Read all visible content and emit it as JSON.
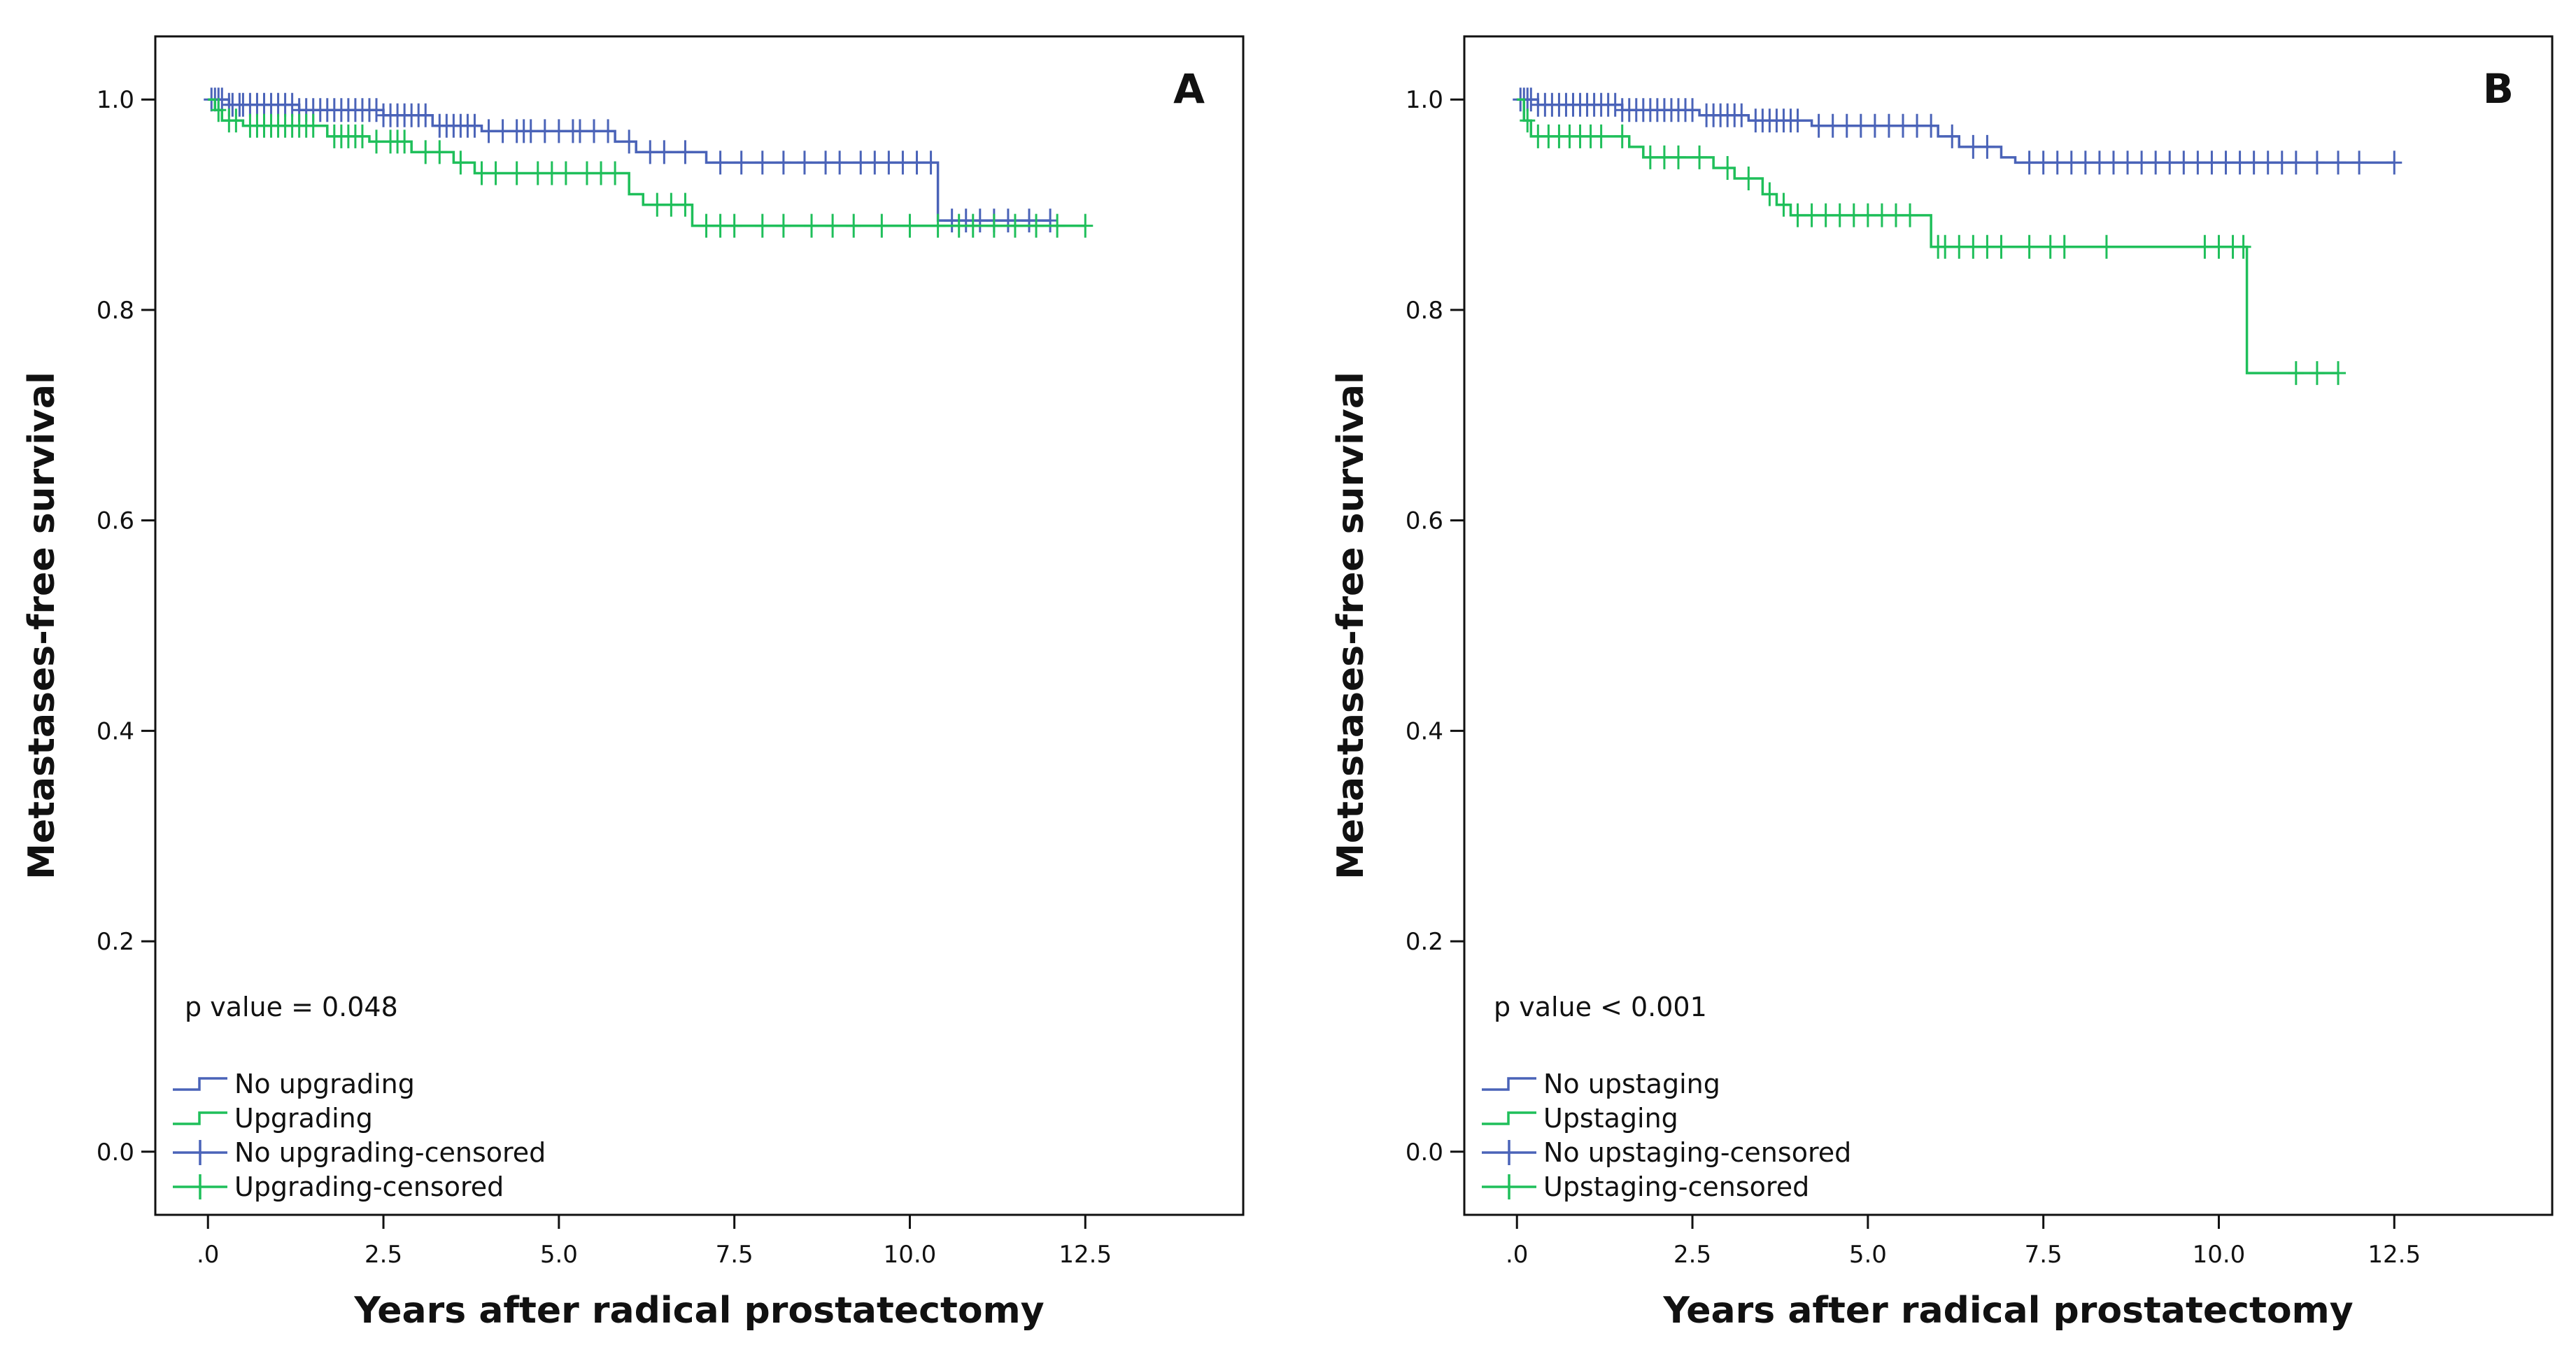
{
  "chart_data": [
    {
      "type": "line",
      "panel_label": "A",
      "xlabel": "Years after radical prostatectomy",
      "ylabel": "Metastases-free survival",
      "xlim": [
        -0.75,
        14.75
      ],
      "ylim": [
        -0.06,
        1.06
      ],
      "x_ticks": [
        0,
        2.5,
        5,
        7.5,
        10,
        12.5
      ],
      "x_tick_labels": [
        ".0",
        "2.5",
        "5.0",
        "7.5",
        "10.0",
        "12.5"
      ],
      "y_ticks": [
        0,
        0.2,
        0.4,
        0.6,
        0.8,
        1.0
      ],
      "y_tick_labels": [
        "0.0",
        "0.2",
        "0.4",
        "0.6",
        "0.8",
        "1.0"
      ],
      "annotation": "p value = 0.048",
      "legend_location": "bottom-left",
      "legend": [
        "No upgrading",
        "Upgrading",
        "No upgrading-censored",
        "Upgrading-censored"
      ],
      "series": [
        {
          "name": "No upgrading",
          "color": "#4a63b8",
          "steps": [
            [
              0,
              1.0
            ],
            [
              0.3,
              0.995
            ],
            [
              1.3,
              0.99
            ],
            [
              2.5,
              0.985
            ],
            [
              3.2,
              0.975
            ],
            [
              3.9,
              0.97
            ],
            [
              5.8,
              0.96
            ],
            [
              6.1,
              0.95
            ],
            [
              7.1,
              0.94
            ],
            [
              10.4,
              0.885
            ],
            [
              12.0,
              0.885
            ]
          ],
          "censored": [
            0.05,
            0.1,
            0.15,
            0.2,
            0.3,
            0.35,
            0.45,
            0.5,
            0.6,
            0.7,
            0.8,
            0.9,
            1.0,
            1.1,
            1.2,
            1.3,
            1.4,
            1.5,
            1.6,
            1.7,
            1.8,
            1.9,
            2.0,
            2.1,
            2.2,
            2.3,
            2.4,
            2.5,
            2.6,
            2.7,
            2.8,
            2.9,
            3.0,
            3.1,
            3.3,
            3.4,
            3.5,
            3.6,
            3.7,
            3.8,
            4.0,
            4.2,
            4.4,
            4.5,
            4.6,
            4.8,
            5.0,
            5.2,
            5.3,
            5.5,
            5.7,
            6.0,
            6.3,
            6.5,
            6.8,
            7.3,
            7.6,
            7.9,
            8.2,
            8.5,
            8.8,
            9.0,
            9.3,
            9.5,
            9.7,
            9.9,
            10.1,
            10.3,
            10.6,
            10.8,
            11.0,
            11.2,
            11.4,
            11.7,
            12.0
          ]
        },
        {
          "name": "Upgrading",
          "color": "#1fbf5a",
          "steps": [
            [
              0,
              1.0
            ],
            [
              0.1,
              0.99
            ],
            [
              0.2,
              0.98
            ],
            [
              0.5,
              0.975
            ],
            [
              1.7,
              0.965
            ],
            [
              2.3,
              0.96
            ],
            [
              2.9,
              0.95
            ],
            [
              3.5,
              0.94
            ],
            [
              3.8,
              0.93
            ],
            [
              6.0,
              0.91
            ],
            [
              6.2,
              0.9
            ],
            [
              6.9,
              0.88
            ],
            [
              12.5,
              0.88
            ]
          ],
          "censored": [
            0.15,
            0.3,
            0.4,
            0.6,
            0.7,
            0.8,
            0.9,
            1.0,
            1.1,
            1.2,
            1.3,
            1.4,
            1.5,
            1.8,
            1.9,
            2.0,
            2.1,
            2.2,
            2.4,
            2.6,
            2.7,
            2.8,
            3.1,
            3.3,
            3.6,
            3.9,
            4.1,
            4.4,
            4.7,
            4.9,
            5.1,
            5.4,
            5.6,
            5.8,
            6.4,
            6.6,
            6.8,
            7.1,
            7.3,
            7.5,
            7.9,
            8.2,
            8.6,
            8.9,
            9.2,
            9.6,
            10.0,
            10.4,
            10.7,
            10.9,
            11.2,
            11.5,
            11.8,
            12.1,
            12.5
          ]
        }
      ]
    },
    {
      "type": "line",
      "panel_label": "B",
      "xlabel": "Years after radical prostatectomy",
      "ylabel": "Metastases-free survival",
      "xlim": [
        -0.75,
        14.75
      ],
      "ylim": [
        -0.06,
        1.06
      ],
      "x_ticks": [
        0,
        2.5,
        5,
        7.5,
        10,
        12.5
      ],
      "x_tick_labels": [
        ".0",
        "2.5",
        "5.0",
        "7.5",
        "10.0",
        "12.5"
      ],
      "y_ticks": [
        0,
        0.2,
        0.4,
        0.6,
        0.8,
        1.0
      ],
      "y_tick_labels": [
        "0.0",
        "0.2",
        "0.4",
        "0.6",
        "0.8",
        "1.0"
      ],
      "annotation": "p value < 0.001",
      "legend_location": "bottom-left",
      "legend": [
        "No upstaging",
        "Upstaging",
        "No upstaging-censored",
        "Upstaging-censored"
      ],
      "series": [
        {
          "name": "No upstaging",
          "color": "#4a63b8",
          "steps": [
            [
              0,
              1.0
            ],
            [
              0.3,
              0.995
            ],
            [
              1.5,
              0.99
            ],
            [
              2.6,
              0.985
            ],
            [
              3.3,
              0.98
            ],
            [
              4.2,
              0.975
            ],
            [
              6.0,
              0.965
            ],
            [
              6.3,
              0.955
            ],
            [
              6.9,
              0.945
            ],
            [
              7.1,
              0.94
            ],
            [
              12.5,
              0.94
            ]
          ],
          "censored": [
            0.05,
            0.1,
            0.15,
            0.2,
            0.3,
            0.4,
            0.5,
            0.6,
            0.7,
            0.8,
            0.9,
            1.0,
            1.1,
            1.2,
            1.3,
            1.4,
            1.5,
            1.6,
            1.7,
            1.8,
            1.9,
            2.0,
            2.1,
            2.2,
            2.3,
            2.4,
            2.5,
            2.7,
            2.8,
            2.9,
            3.0,
            3.1,
            3.2,
            3.4,
            3.5,
            3.6,
            3.7,
            3.8,
            3.9,
            4.0,
            4.3,
            4.5,
            4.7,
            4.9,
            5.1,
            5.3,
            5.5,
            5.7,
            5.9,
            6.2,
            6.5,
            6.7,
            7.3,
            7.5,
            7.7,
            7.9,
            8.1,
            8.3,
            8.5,
            8.7,
            8.9,
            9.1,
            9.3,
            9.5,
            9.7,
            9.9,
            10.1,
            10.3,
            10.5,
            10.7,
            10.9,
            11.1,
            11.4,
            11.7,
            12.0,
            12.5
          ]
        },
        {
          "name": "Upstaging",
          "color": "#1fbf5a",
          "steps": [
            [
              0,
              1.0
            ],
            [
              0.1,
              0.98
            ],
            [
              0.2,
              0.965
            ],
            [
              1.6,
              0.955
            ],
            [
              1.8,
              0.945
            ],
            [
              2.8,
              0.935
            ],
            [
              3.1,
              0.925
            ],
            [
              3.5,
              0.91
            ],
            [
              3.7,
              0.9
            ],
            [
              3.9,
              0.89
            ],
            [
              5.9,
              0.86
            ],
            [
              10.4,
              0.74
            ],
            [
              11.7,
              0.74
            ]
          ],
          "censored": [
            0.15,
            0.3,
            0.45,
            0.6,
            0.75,
            0.9,
            1.05,
            1.2,
            1.5,
            1.9,
            2.1,
            2.3,
            2.6,
            3.0,
            3.3,
            3.6,
            3.8,
            4.0,
            4.2,
            4.4,
            4.6,
            4.8,
            5.0,
            5.2,
            5.4,
            5.6,
            6.0,
            6.1,
            6.3,
            6.5,
            6.7,
            6.9,
            7.3,
            7.6,
            7.8,
            8.4,
            9.8,
            10.0,
            10.2,
            10.35,
            11.1,
            11.4,
            11.7
          ]
        }
      ]
    }
  ]
}
